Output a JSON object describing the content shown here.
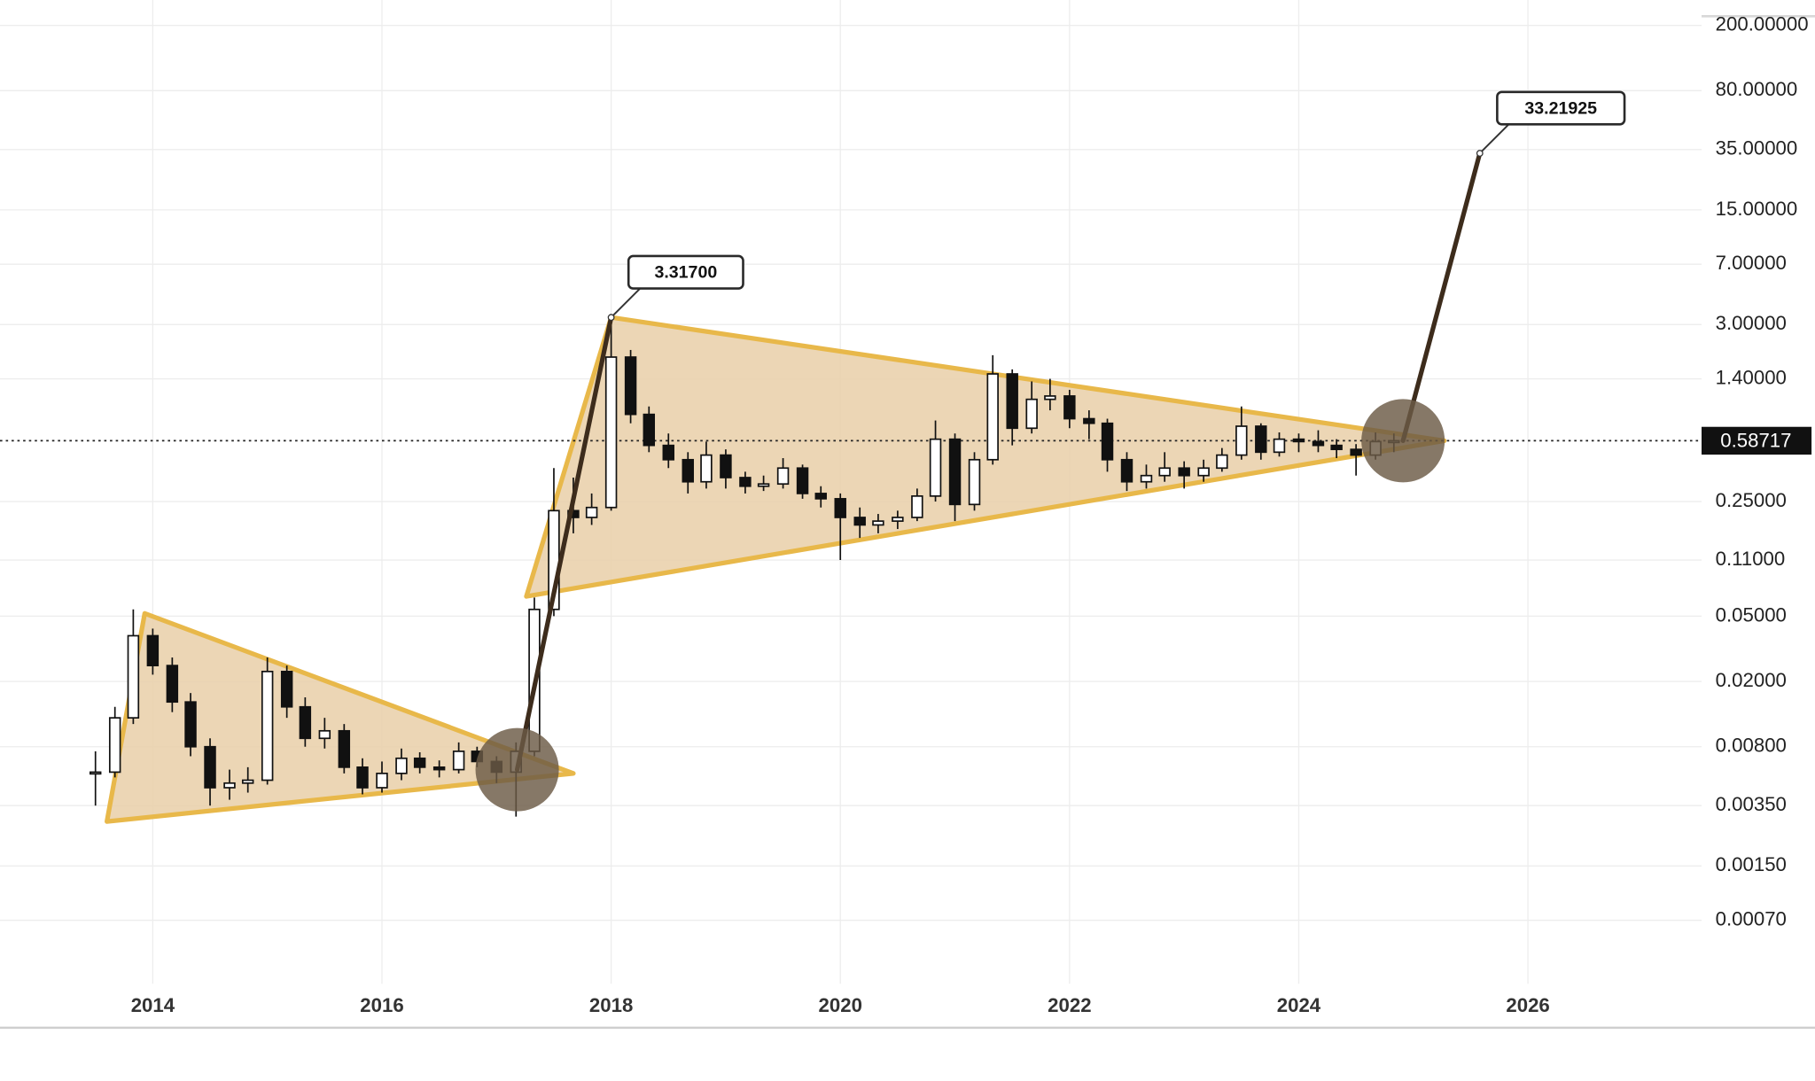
{
  "chart_data": {
    "type": "candlestick",
    "log_scale": true,
    "grid": true,
    "xlim": [
      2012.667,
      2027.515
    ],
    "xticks": [
      2014,
      2016,
      2018,
      2020,
      2022,
      2024,
      2026
    ],
    "ylim": [
      0.000287,
      285.6
    ],
    "yticks": [
      {
        "value": 200,
        "label": "200.00000"
      },
      {
        "value": 80,
        "label": "80.00000"
      },
      {
        "value": 35,
        "label": "35.00000"
      },
      {
        "value": 15,
        "label": "15.00000"
      },
      {
        "value": 7,
        "label": "7.00000"
      },
      {
        "value": 3,
        "label": "3.00000"
      },
      {
        "value": 1.4,
        "label": "1.40000"
      },
      {
        "value": 0.25,
        "label": "0.25000"
      },
      {
        "value": 0.11,
        "label": "0.11000"
      },
      {
        "value": 0.05,
        "label": "0.05000"
      },
      {
        "value": 0.02,
        "label": "0.02000"
      },
      {
        "value": 0.008,
        "label": "0.00800"
      },
      {
        "value": 0.0035,
        "label": "0.00350"
      },
      {
        "value": 0.0015,
        "label": "0.00150"
      },
      {
        "value": 0.0007,
        "label": "0.00070"
      }
    ],
    "up_color": "#ffffff",
    "down_color": "#111111",
    "wick_color": "#111111",
    "candles": {
      "x": [
        2013.5,
        2013.67,
        2013.83,
        2014.0,
        2014.17,
        2014.33,
        2014.5,
        2014.67,
        2014.83,
        2015.0,
        2015.17,
        2015.33,
        2015.5,
        2015.67,
        2015.83,
        2016.0,
        2016.17,
        2016.33,
        2016.5,
        2016.67,
        2016.83,
        2017.0,
        2017.17,
        2017.33,
        2017.5,
        2017.67,
        2017.83,
        2018.0,
        2018.17,
        2018.33,
        2018.5,
        2018.67,
        2018.83,
        2019.0,
        2019.17,
        2019.33,
        2019.5,
        2019.67,
        2019.83,
        2020.0,
        2020.17,
        2020.33,
        2020.5,
        2020.67,
        2020.83,
        2021.0,
        2021.17,
        2021.33,
        2021.5,
        2021.67,
        2021.83,
        2022.0,
        2022.17,
        2022.33,
        2022.5,
        2022.67,
        2022.83,
        2023.0,
        2023.17,
        2023.33,
        2023.5,
        2023.67,
        2023.83,
        2024.0,
        2024.17,
        2024.33,
        2024.5,
        2024.67,
        2024.83
      ],
      "open": [
        0.0055,
        0.0056,
        0.012,
        0.038,
        0.025,
        0.015,
        0.008,
        0.0045,
        0.0048,
        0.005,
        0.023,
        0.014,
        0.009,
        0.01,
        0.006,
        0.0045,
        0.0055,
        0.0068,
        0.006,
        0.0058,
        0.0075,
        0.0065,
        0.0056,
        0.0075,
        0.055,
        0.22,
        0.2,
        0.23,
        1.9,
        0.85,
        0.55,
        0.45,
        0.33,
        0.48,
        0.35,
        0.31,
        0.32,
        0.4,
        0.28,
        0.26,
        0.2,
        0.18,
        0.19,
        0.2,
        0.27,
        0.6,
        0.24,
        0.45,
        1.5,
        0.7,
        1.05,
        1.1,
        0.8,
        0.75,
        0.45,
        0.33,
        0.36,
        0.4,
        0.36,
        0.4,
        0.48,
        0.72,
        0.5,
        0.6,
        0.58,
        0.55,
        0.52,
        0.48,
        0.58
      ],
      "high": [
        0.0075,
        0.014,
        0.055,
        0.042,
        0.028,
        0.017,
        0.009,
        0.0058,
        0.006,
        0.028,
        0.025,
        0.016,
        0.012,
        0.011,
        0.0068,
        0.0065,
        0.0078,
        0.0074,
        0.0066,
        0.0085,
        0.008,
        0.007,
        0.0085,
        0.065,
        0.4,
        0.35,
        0.28,
        3.317,
        2.1,
        0.95,
        0.65,
        0.5,
        0.58,
        0.52,
        0.38,
        0.36,
        0.46,
        0.42,
        0.31,
        0.28,
        0.23,
        0.21,
        0.22,
        0.3,
        0.78,
        0.65,
        0.5,
        1.95,
        1.6,
        1.35,
        1.4,
        1.2,
        0.9,
        0.8,
        0.5,
        0.42,
        0.5,
        0.44,
        0.45,
        0.53,
        0.95,
        0.75,
        0.66,
        0.65,
        0.68,
        0.6,
        0.56,
        0.66,
        0.65
      ],
      "low": [
        0.0035,
        0.0052,
        0.011,
        0.022,
        0.013,
        0.007,
        0.0035,
        0.0038,
        0.0042,
        0.0047,
        0.012,
        0.008,
        0.0078,
        0.0055,
        0.0041,
        0.0042,
        0.005,
        0.0055,
        0.0052,
        0.0055,
        0.006,
        0.0048,
        0.003,
        0.007,
        0.05,
        0.16,
        0.18,
        0.22,
        0.75,
        0.5,
        0.4,
        0.28,
        0.3,
        0.3,
        0.28,
        0.29,
        0.3,
        0.26,
        0.23,
        0.11,
        0.15,
        0.16,
        0.17,
        0.19,
        0.25,
        0.19,
        0.22,
        0.42,
        0.55,
        0.65,
        0.9,
        0.7,
        0.6,
        0.38,
        0.29,
        0.3,
        0.33,
        0.3,
        0.33,
        0.38,
        0.45,
        0.45,
        0.47,
        0.5,
        0.5,
        0.46,
        0.36,
        0.45,
        0.5
      ],
      "close": [
        0.0056,
        0.012,
        0.038,
        0.025,
        0.015,
        0.008,
        0.0045,
        0.0048,
        0.005,
        0.023,
        0.014,
        0.009,
        0.01,
        0.006,
        0.0045,
        0.0055,
        0.0068,
        0.006,
        0.0058,
        0.0075,
        0.0065,
        0.0056,
        0.0075,
        0.055,
        0.22,
        0.2,
        0.23,
        1.9,
        0.85,
        0.55,
        0.45,
        0.33,
        0.48,
        0.35,
        0.31,
        0.32,
        0.4,
        0.28,
        0.26,
        0.2,
        0.18,
        0.19,
        0.2,
        0.27,
        0.6,
        0.24,
        0.45,
        1.5,
        0.7,
        1.05,
        1.1,
        0.8,
        0.75,
        0.45,
        0.33,
        0.36,
        0.4,
        0.36,
        0.4,
        0.48,
        0.72,
        0.5,
        0.6,
        0.58,
        0.55,
        0.52,
        0.48,
        0.58,
        0.58717
      ]
    },
    "last_price": 0.58717,
    "patterns": [
      {
        "x": [
          2013.93,
          2013.6,
          2017.67
        ],
        "y": [
          0.052,
          0.0028,
          0.0055
        ],
        "fill": "#e9cfa8",
        "edge": "#e8b84a"
      },
      {
        "x": [
          2018.0,
          2017.26,
          2025.27
        ],
        "y": [
          3.317,
          0.066,
          0.587
        ],
        "fill": "#e9cfa8",
        "edge": "#e8b84a"
      }
    ],
    "projections": [
      {
        "x": [
          2017.18,
          2018.0
        ],
        "y": [
          0.0058,
          3.317
        ],
        "color": "#3d2c1c"
      },
      {
        "x": [
          2024.91,
          2025.58
        ],
        "y": [
          0.58717,
          33.21925
        ],
        "color": "#3d2c1c"
      }
    ],
    "breakouts": {
      "x": [
        2017.18,
        2024.91
      ],
      "y": [
        0.0058,
        0.58717
      ],
      "color": "#6b5a45"
    },
    "annotations": [
      {
        "text": "3.31700",
        "x": 2018.0,
        "value": 3.317
      },
      {
        "text": "33.21925",
        "x": 2025.58,
        "value": 33.21925
      }
    ]
  }
}
